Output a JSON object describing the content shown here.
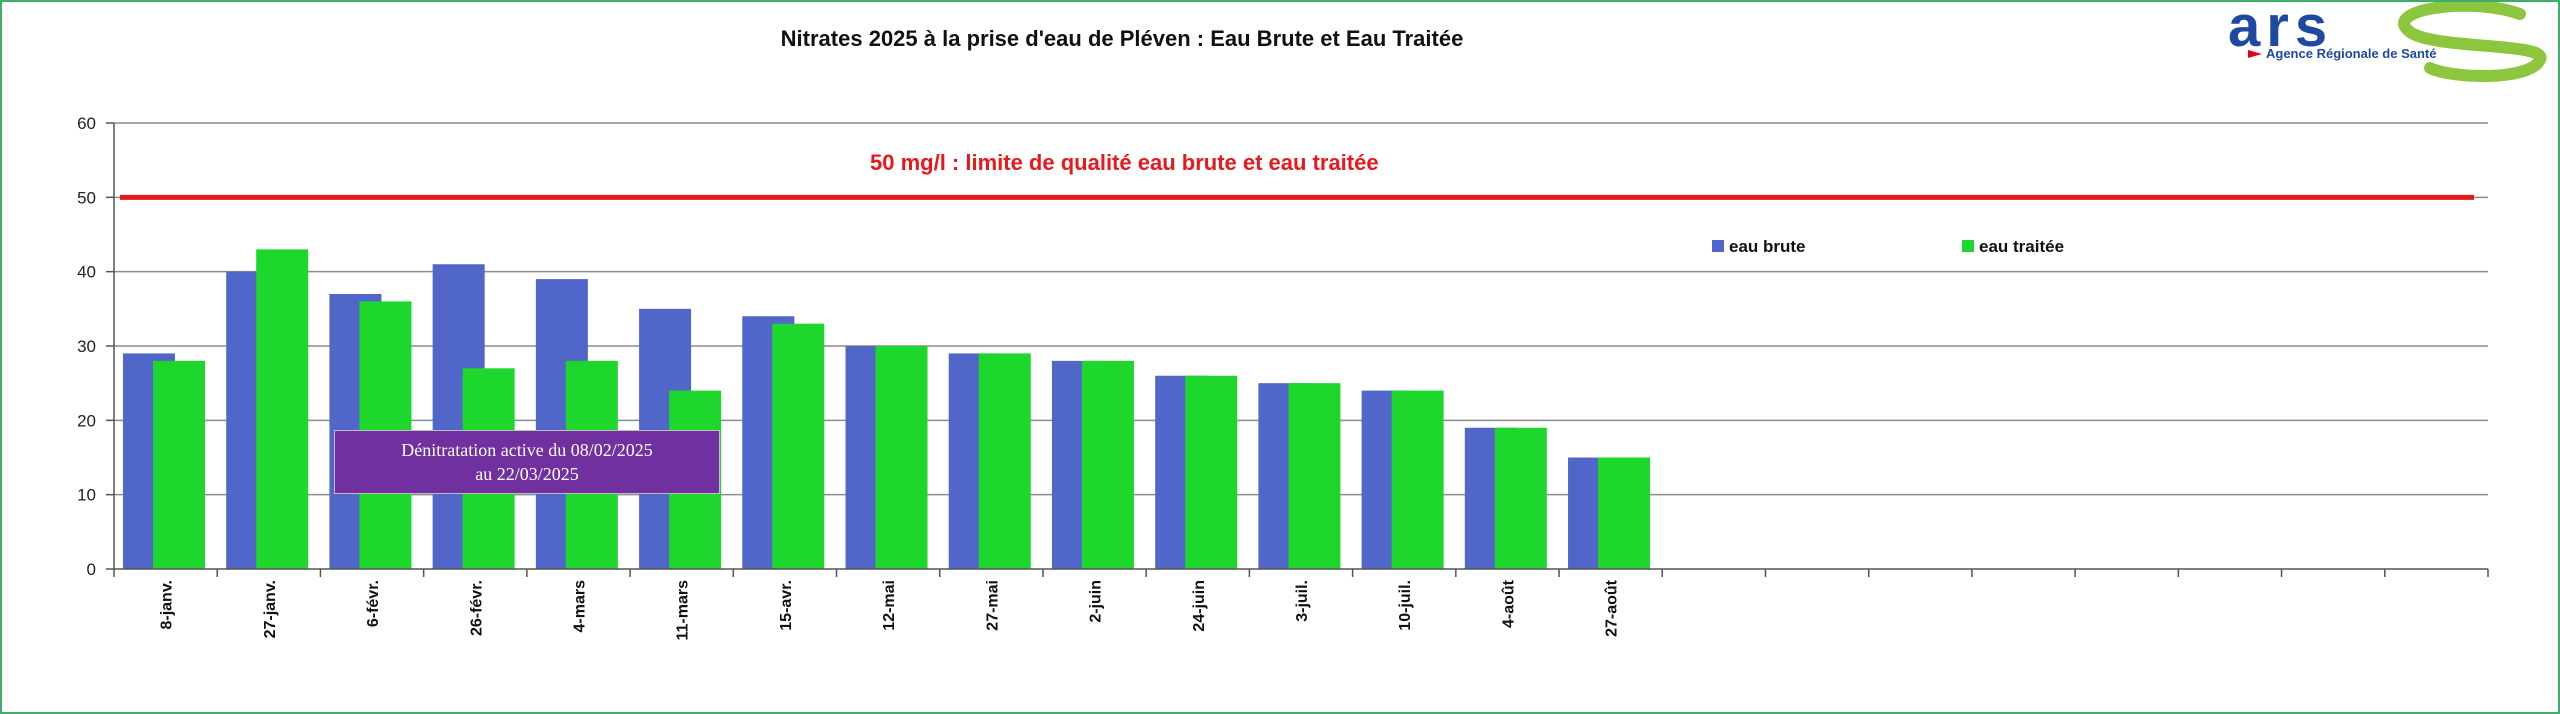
{
  "chart_data": {
    "type": "bar",
    "title": "Nitrates 2025 à la prise d'eau de Pléven : Eau Brute et Eau Traitée",
    "categories": [
      "8-janv.",
      "27-janv.",
      "6-févr.",
      "26-févr.",
      "4-mars",
      "11-mars",
      "15-avr.",
      "12-mai",
      "27-mai",
      "2-juin",
      "24-juin",
      "3-juil.",
      "10-juil.",
      "4-août",
      "27-août",
      "",
      "",
      "",
      "",
      "",
      "",
      "",
      ""
    ],
    "series": [
      {
        "name": "eau brute",
        "color": "#5066c9",
        "values": [
          29,
          40,
          37,
          41,
          39,
          35,
          34,
          30,
          29,
          28,
          26,
          25,
          24,
          19,
          15,
          null,
          null,
          null,
          null,
          null,
          null,
          null,
          null
        ]
      },
      {
        "name": "eau traitée",
        "color": "#1ed72c",
        "values": [
          28,
          43,
          36,
          27,
          28,
          24,
          33,
          30,
          29,
          28,
          26,
          25,
          24,
          19,
          15,
          null,
          null,
          null,
          null,
          null,
          null,
          null,
          null
        ]
      }
    ],
    "ylim": [
      0,
      60
    ],
    "yticks": [
      0,
      10,
      20,
      30,
      40,
      50,
      60
    ],
    "grid": true,
    "legend_position": "top-right",
    "reference_line": {
      "value": 50,
      "label": "50 mg/l : limite de qualité eau brute et eau traitée",
      "color": "#e8181c"
    },
    "annotation": {
      "line1": "Dénitratation active du 08/02/2025",
      "line2": "au 22/03/2025",
      "background": "#7030a0"
    }
  },
  "logo": {
    "letters": "ars",
    "subtitle": "Agence Régionale de Santé",
    "blue": "#1d4aa0",
    "green": "#8cc63f",
    "red": "#e2001a"
  }
}
